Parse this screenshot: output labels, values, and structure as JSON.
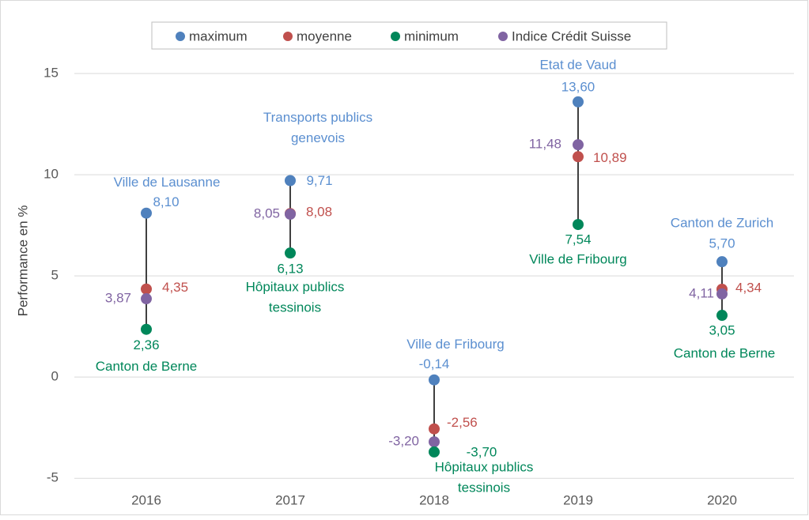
{
  "chart_data": {
    "type": "dot-range",
    "y_label": "Performance en %",
    "categories": [
      "2016",
      "2017",
      "2018",
      "2019",
      "2020"
    ],
    "series": [
      {
        "name": "maximum",
        "color": "#4f81bd",
        "values": [
          8.1,
          9.71,
          -0.14,
          13.6,
          5.7
        ],
        "value_labels": [
          "8,10",
          "9,71",
          "-0,14",
          "13,60",
          "5,70"
        ],
        "point_names": [
          [
            "Ville de Lausanne"
          ],
          [
            "Transports publics",
            "genevois"
          ],
          [
            "Ville de Fribourg"
          ],
          [
            "Etat de Vaud"
          ],
          [
            "Canton de Zurich"
          ]
        ]
      },
      {
        "name": "moyenne",
        "color": "#c0504d",
        "values": [
          4.35,
          8.08,
          -2.56,
          10.89,
          4.34
        ],
        "value_labels": [
          "4,35",
          "8,08",
          "-2,56",
          "10,89",
          "4,34"
        ]
      },
      {
        "name": "minimum",
        "color": "#00875a",
        "values": [
          2.36,
          6.13,
          -3.7,
          7.54,
          3.05
        ],
        "value_labels": [
          "2,36",
          "6,13",
          "-3,70",
          "7,54",
          "3,05"
        ],
        "point_names": [
          [
            "Canton de Berne"
          ],
          [
            "Hôpitaux publics",
            "tessinois"
          ],
          [
            "Hôpitaux publics",
            "tessinois"
          ],
          [
            "Ville de Fribourg"
          ],
          [
            "Canton de Berne"
          ]
        ]
      },
      {
        "name": "Indice Crédit Suisse",
        "color": "#8064a2",
        "values": [
          3.87,
          8.05,
          -3.2,
          11.48,
          4.11
        ],
        "value_labels": [
          "3,87",
          "8,05",
          "-3,20",
          "11,48",
          "4,11"
        ]
      }
    ],
    "ylim": [
      -5.5,
      17.5
    ],
    "yticks": [
      -5,
      0,
      5,
      10,
      15
    ],
    "grid": true,
    "legend": "top"
  }
}
